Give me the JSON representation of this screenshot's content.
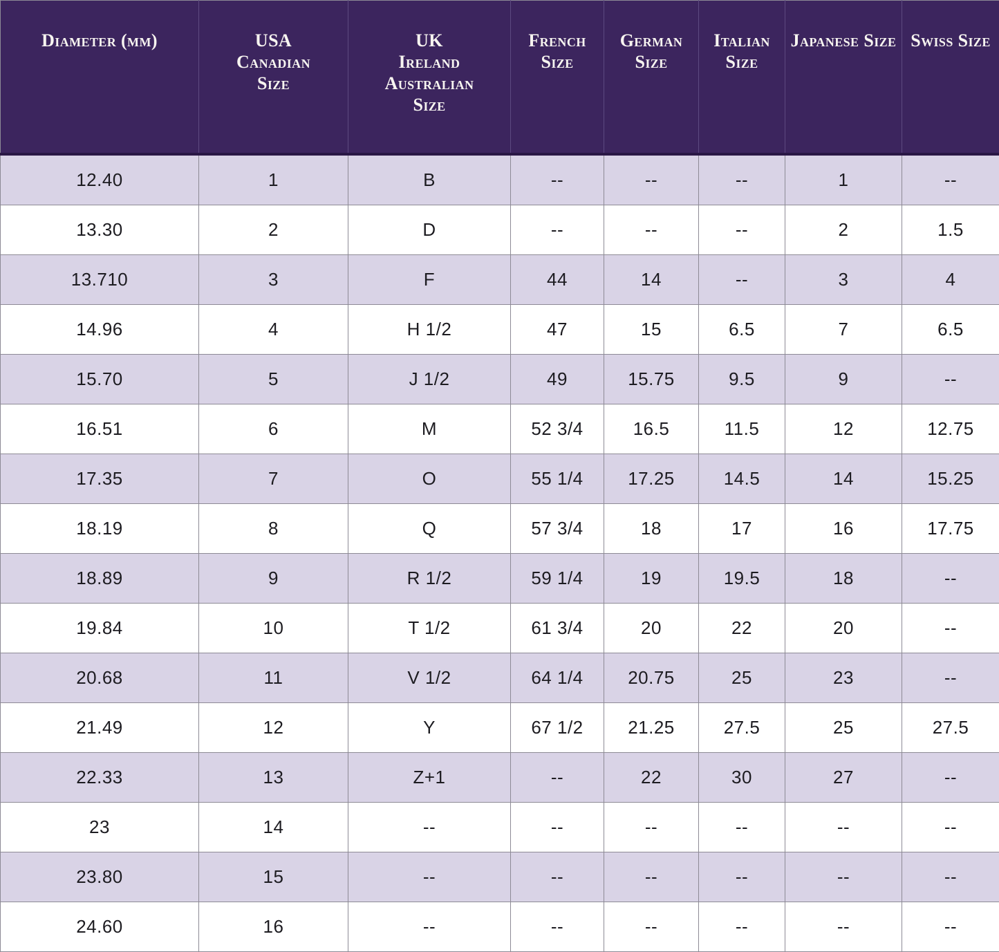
{
  "theme": {
    "header_bg": "#3c255e",
    "header_border": "#2a1745",
    "header_divider": "#5d4a80",
    "header_text": "#f7f4f0",
    "row_alt": "#d9d3e6",
    "row_bg": "#ffffff",
    "grid": "#8d8a95",
    "text": "#1d1c21"
  },
  "chart_data": {
    "type": "table",
    "columns": [
      "Diameter (mm)",
      "USA\nCanadian\nSize",
      "UK\nIreland\nAustralian\nSize",
      "French\nSize",
      "German\nSize",
      "Italian\nSize",
      "Japanese Size",
      "Swiss Size"
    ],
    "rows": [
      [
        "12.40",
        "1",
        "B",
        "--",
        "--",
        "--",
        "1",
        "--"
      ],
      [
        "13.30",
        "2",
        "D",
        "--",
        "--",
        "--",
        "2",
        "1.5"
      ],
      [
        "13.710",
        "3",
        "F",
        "44",
        "14",
        "--",
        "3",
        "4"
      ],
      [
        "14.96",
        "4",
        "H 1/2",
        "47",
        "15",
        "6.5",
        "7",
        "6.5"
      ],
      [
        "15.70",
        "5",
        "J 1/2",
        "49",
        "15.75",
        "9.5",
        "9",
        "--"
      ],
      [
        "16.51",
        "6",
        "M",
        "52 3/4",
        "16.5",
        "11.5",
        "12",
        "12.75"
      ],
      [
        "17.35",
        "7",
        "O",
        "55 1/4",
        "17.25",
        "14.5",
        "14",
        "15.25"
      ],
      [
        "18.19",
        "8",
        "Q",
        "57 3/4",
        "18",
        "17",
        "16",
        "17.75"
      ],
      [
        "18.89",
        "9",
        "R 1/2",
        "59 1/4",
        "19",
        "19.5",
        "18",
        "--"
      ],
      [
        "19.84",
        "10",
        "T 1/2",
        "61 3/4",
        "20",
        "22",
        "20",
        "--"
      ],
      [
        "20.68",
        "11",
        "V 1/2",
        "64 1/4",
        "20.75",
        "25",
        "23",
        "--"
      ],
      [
        "21.49",
        "12",
        "Y",
        "67 1/2",
        "21.25",
        "27.5",
        "25",
        "27.5"
      ],
      [
        "22.33",
        "13",
        "Z+1",
        "--",
        "22",
        "30",
        "27",
        "--"
      ],
      [
        "23",
        "14",
        "--",
        "--",
        "--",
        "--",
        "--",
        "--"
      ],
      [
        "23.80",
        "15",
        "--",
        "--",
        "--",
        "--",
        "--",
        "--"
      ],
      [
        "24.60",
        "16",
        "--",
        "--",
        "--",
        "--",
        "--",
        "--"
      ]
    ]
  }
}
